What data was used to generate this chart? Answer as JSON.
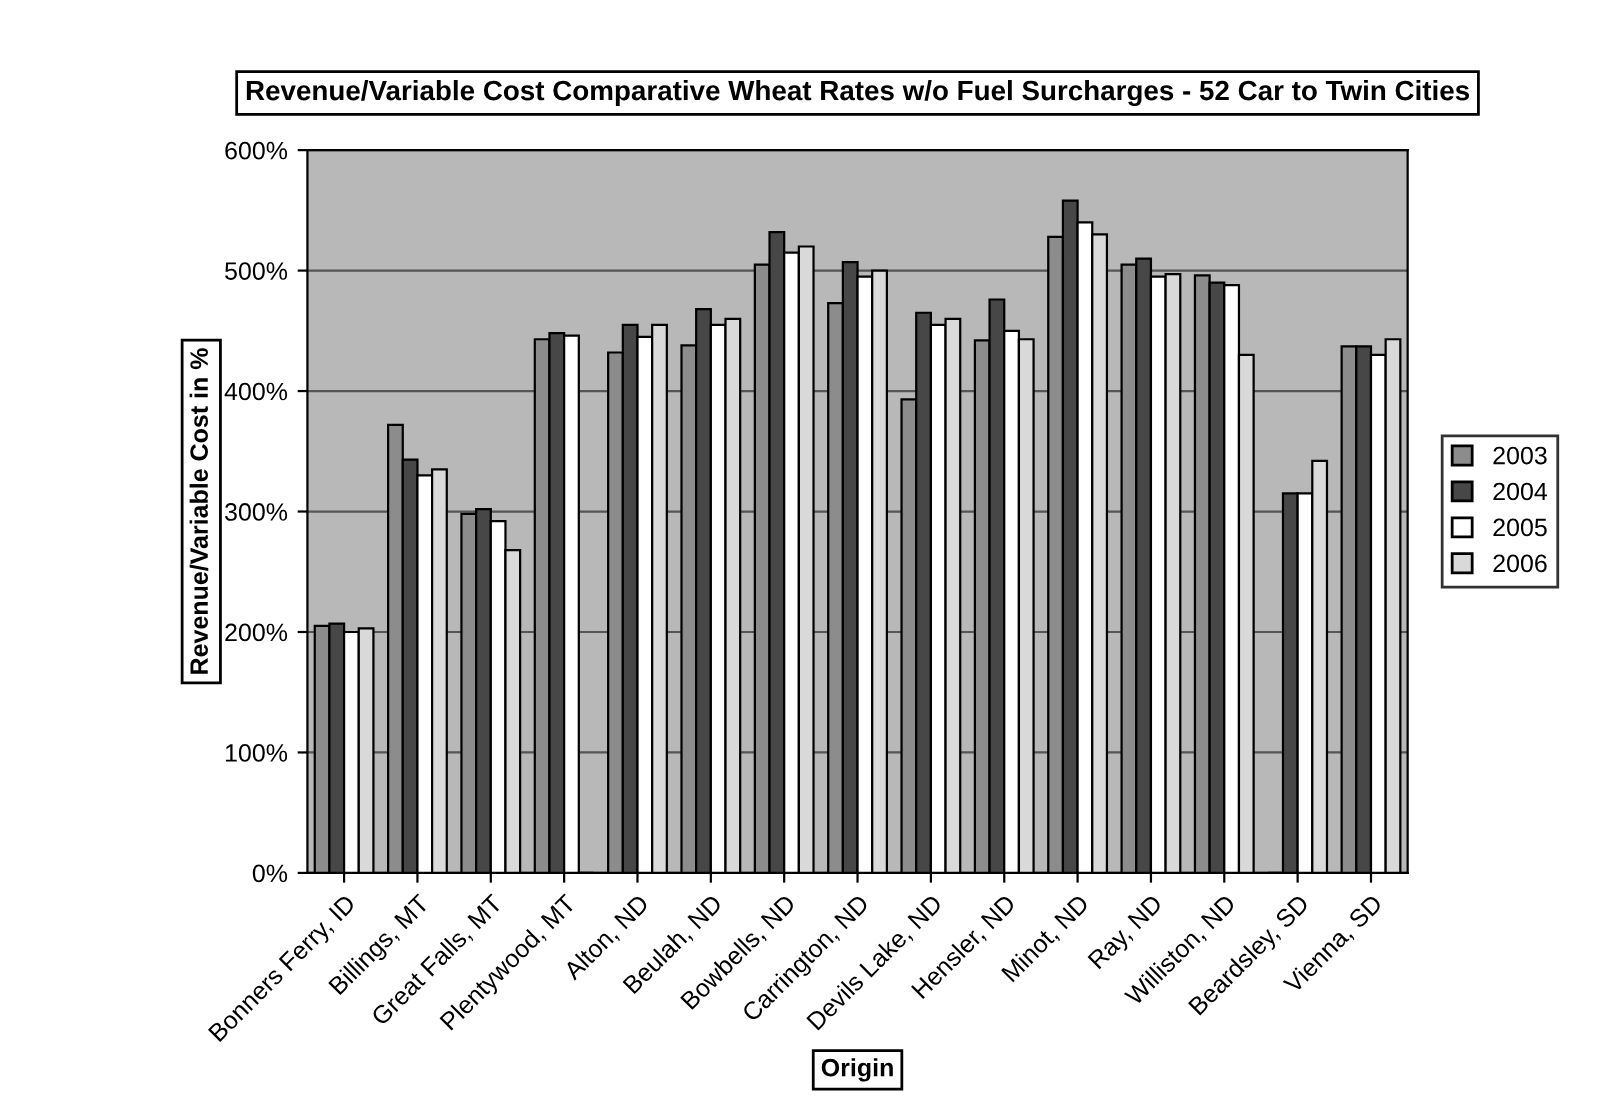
{
  "chart_data": {
    "type": "bar",
    "title": "Revenue/Variable Cost Comparative Wheat Rates w/o Fuel Surcharges - 52 Car to Twin Cities",
    "xlabel": "Origin",
    "ylabel": "Revenue/Variable Cost in %",
    "categories": [
      "Bonners Ferry, ID",
      "Billings, MT",
      "Great Falls, MT",
      "Plentywood, MT",
      "Alton, ND",
      "Beulah, ND",
      "Bowbells, ND",
      "Carrington, ND",
      "Devils Lake, ND",
      "Hensler, ND",
      "Minot, ND",
      "Ray, ND",
      "Williston, ND",
      "Beardsley, SD",
      "Vienna, SD"
    ],
    "series": [
      {
        "name": "2003",
        "color": "#8c8c8c",
        "values": [
          205,
          372,
          298,
          443,
          432,
          438,
          505,
          473,
          393,
          442,
          528,
          505,
          496,
          0,
          437
        ]
      },
      {
        "name": "2004",
        "color": "#474747",
        "values": [
          207,
          343,
          302,
          448,
          455,
          468,
          532,
          507,
          465,
          476,
          558,
          510,
          490,
          315,
          437
        ]
      },
      {
        "name": "2005",
        "color": "#ffffff",
        "values": [
          200,
          330,
          292,
          446,
          445,
          455,
          515,
          495,
          455,
          450,
          540,
          495,
          488,
          315,
          430
        ]
      },
      {
        "name": "2006",
        "color": "#d9d9d9",
        "values": [
          203,
          335,
          268,
          0,
          455,
          460,
          520,
          500,
          460,
          443,
          530,
          497,
          430,
          342,
          443
        ]
      }
    ],
    "ylim": [
      0,
      600
    ],
    "yticks": [
      {
        "value": 0,
        "label": "0%"
      },
      {
        "value": 100,
        "label": "100%"
      },
      {
        "value": 200,
        "label": "200%"
      },
      {
        "value": 300,
        "label": "300%"
      },
      {
        "value": 400,
        "label": "400%"
      },
      {
        "value": 500,
        "label": "500%"
      },
      {
        "value": 600,
        "label": "600%"
      }
    ],
    "grid": "y",
    "legend": "right"
  }
}
